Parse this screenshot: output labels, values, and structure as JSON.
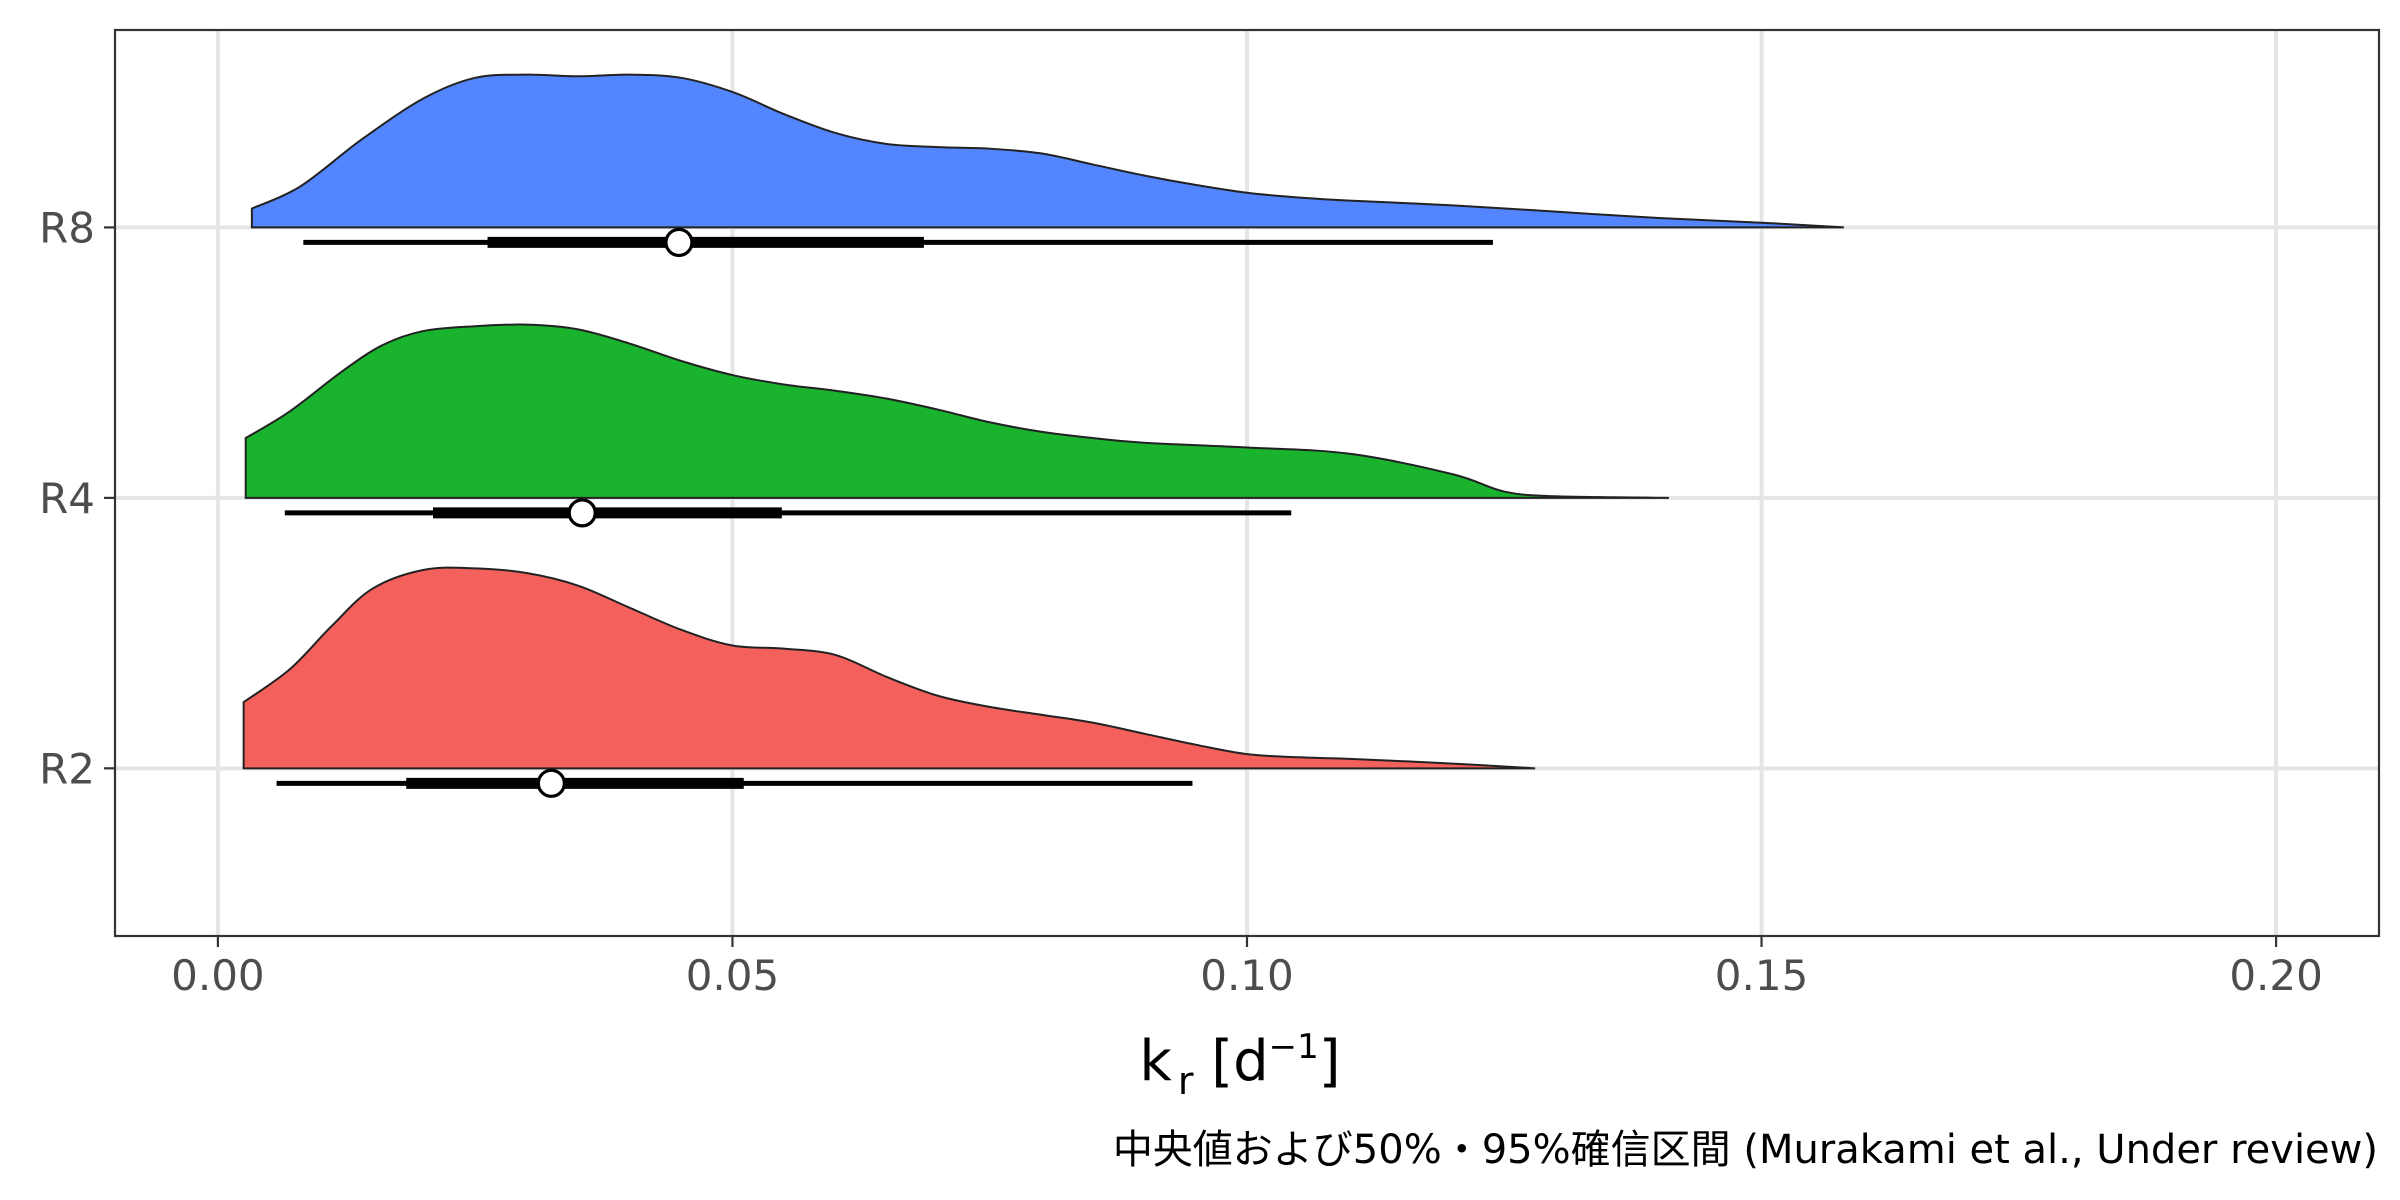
{
  "chart_data": {
    "type": "density",
    "xlabel": {
      "main": "k",
      "sub": "r",
      "unit_open": " [d",
      "sup": "−1",
      "unit_close": "]"
    },
    "caption": "中央値および50%・95%確信区間 (Murakami et al., Under review)",
    "xlim": [
      -0.01,
      0.21
    ],
    "x_ticks": [
      {
        "value": 0.0,
        "label": "0.00"
      },
      {
        "value": 0.05,
        "label": "0.05"
      },
      {
        "value": 0.1,
        "label": "0.10"
      },
      {
        "value": 0.15,
        "label": "0.15"
      },
      {
        "value": 0.2,
        "label": "0.20"
      }
    ],
    "grid": true,
    "series": [
      {
        "name": "R8",
        "color": "#5386FE",
        "median": 0.0448,
        "ci50": [
          0.0262,
          0.0686
        ],
        "ci95": [
          0.0083,
          0.1239
        ],
        "density": [
          [
            0.0033,
            0.12
          ],
          [
            0.008,
            0.26
          ],
          [
            0.014,
            0.56
          ],
          [
            0.02,
            0.82
          ],
          [
            0.025,
            0.95
          ],
          [
            0.03,
            0.97
          ],
          [
            0.035,
            0.96
          ],
          [
            0.04,
            0.97
          ],
          [
            0.045,
            0.95
          ],
          [
            0.05,
            0.86
          ],
          [
            0.055,
            0.72
          ],
          [
            0.06,
            0.6
          ],
          [
            0.065,
            0.53
          ],
          [
            0.07,
            0.51
          ],
          [
            0.075,
            0.5
          ],
          [
            0.08,
            0.47
          ],
          [
            0.085,
            0.4
          ],
          [
            0.09,
            0.33
          ],
          [
            0.095,
            0.27
          ],
          [
            0.1,
            0.22
          ],
          [
            0.105,
            0.19
          ],
          [
            0.11,
            0.17
          ],
          [
            0.12,
            0.14
          ],
          [
            0.13,
            0.1
          ],
          [
            0.14,
            0.06
          ],
          [
            0.15,
            0.03
          ],
          [
            0.158,
            0.0
          ]
        ]
      },
      {
        "name": "R4",
        "color": "#19B32E",
        "median": 0.0354,
        "ci50": [
          0.0209,
          0.0548
        ],
        "ci95": [
          0.0065,
          0.1043
        ],
        "density": [
          [
            0.0027,
            0.38
          ],
          [
            0.007,
            0.55
          ],
          [
            0.012,
            0.8
          ],
          [
            0.016,
            0.97
          ],
          [
            0.02,
            1.06
          ],
          [
            0.025,
            1.09
          ],
          [
            0.03,
            1.1
          ],
          [
            0.035,
            1.07
          ],
          [
            0.04,
            0.98
          ],
          [
            0.045,
            0.87
          ],
          [
            0.05,
            0.78
          ],
          [
            0.055,
            0.72
          ],
          [
            0.06,
            0.68
          ],
          [
            0.065,
            0.63
          ],
          [
            0.07,
            0.56
          ],
          [
            0.075,
            0.48
          ],
          [
            0.08,
            0.42
          ],
          [
            0.085,
            0.38
          ],
          [
            0.09,
            0.35
          ],
          [
            0.1,
            0.32
          ],
          [
            0.11,
            0.28
          ],
          [
            0.12,
            0.15
          ],
          [
            0.125,
            0.04
          ],
          [
            0.13,
            0.01
          ],
          [
            0.141,
            0.0
          ]
        ]
      },
      {
        "name": "R2",
        "color": "#F4605C",
        "median": 0.0324,
        "ci50": [
          0.0183,
          0.0511
        ],
        "ci95": [
          0.0057,
          0.0947
        ],
        "density": [
          [
            0.0025,
            0.42
          ],
          [
            0.007,
            0.63
          ],
          [
            0.011,
            0.9
          ],
          [
            0.015,
            1.14
          ],
          [
            0.02,
            1.26
          ],
          [
            0.025,
            1.27
          ],
          [
            0.03,
            1.24
          ],
          [
            0.035,
            1.16
          ],
          [
            0.04,
            1.02
          ],
          [
            0.045,
            0.88
          ],
          [
            0.05,
            0.78
          ],
          [
            0.055,
            0.76
          ],
          [
            0.06,
            0.72
          ],
          [
            0.065,
            0.58
          ],
          [
            0.07,
            0.46
          ],
          [
            0.075,
            0.39
          ],
          [
            0.08,
            0.34
          ],
          [
            0.085,
            0.29
          ],
          [
            0.09,
            0.22
          ],
          [
            0.095,
            0.15
          ],
          [
            0.1,
            0.09
          ],
          [
            0.105,
            0.07
          ],
          [
            0.11,
            0.06
          ],
          [
            0.12,
            0.03
          ],
          [
            0.128,
            0.0
          ]
        ]
      }
    ]
  }
}
